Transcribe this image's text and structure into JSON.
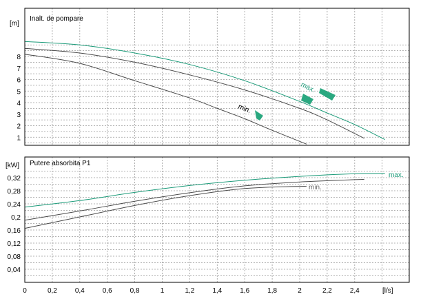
{
  "colors": {
    "max_curve": "#1a9a78",
    "min_curve": "#4a4a4a",
    "max_label": "#1a9a78",
    "min_label": "#6b6b6b",
    "grid": "#9a9a9a",
    "frame": "#000000",
    "marker": "#2aa880"
  },
  "chart_data": [
    {
      "type": "line",
      "title": "Inalt. de pompare",
      "ylabel": "[m]",
      "xlim": [
        0,
        2.8
      ],
      "ylim": [
        0,
        9.6
      ],
      "yticks": [
        "1",
        "2",
        "3",
        "4",
        "5",
        "6",
        "7",
        "8"
      ],
      "grid": true,
      "series": [
        {
          "name": "max.",
          "x": [
            0,
            0.4,
            0.8,
            1.2,
            1.6,
            2.0,
            2.2,
            2.4,
            2.62
          ],
          "y": [
            9.3,
            9.0,
            8.3,
            7.3,
            5.9,
            4.1,
            3.1,
            2.1,
            0.8
          ]
        },
        {
          "x": [
            0,
            0.4,
            0.8,
            1.2,
            1.6,
            2.0,
            2.2,
            2.47
          ],
          "y": [
            8.7,
            8.3,
            7.5,
            6.4,
            5.1,
            3.5,
            2.5,
            0.9
          ]
        },
        {
          "name": "min.",
          "x": [
            0,
            0.4,
            0.8,
            1.2,
            1.4,
            1.6,
            1.8,
            2.05
          ],
          "y": [
            8.2,
            7.4,
            5.9,
            4.4,
            3.5,
            2.6,
            1.6,
            0.4
          ]
        }
      ]
    },
    {
      "type": "line",
      "title": "Putere absorbita P1",
      "ylabel": "[kW]",
      "xlabel": "[l/s]",
      "xlim": [
        0,
        2.8
      ],
      "ylim": [
        0,
        0.36
      ],
      "xticks": [
        "0",
        "0,2",
        "0,4",
        "0,6",
        "0,8",
        "1",
        "1,2",
        "1,4",
        "1,6",
        "1,8",
        "2",
        "2,2",
        "2,4"
      ],
      "yticks": [
        "0,04",
        "0,08",
        "0,12",
        "0,16",
        "0,2",
        "0,24",
        "0,28",
        "0,32"
      ],
      "grid": true,
      "series": [
        {
          "name": "max.",
          "x": [
            0,
            0.4,
            0.8,
            1.2,
            1.6,
            2.0,
            2.4,
            2.62
          ],
          "y": [
            0.23,
            0.25,
            0.275,
            0.296,
            0.312,
            0.324,
            0.332,
            0.333
          ]
        },
        {
          "x": [
            0,
            0.4,
            0.8,
            1.2,
            1.6,
            2.0,
            2.47
          ],
          "y": [
            0.19,
            0.218,
            0.248,
            0.274,
            0.295,
            0.307,
            0.315
          ]
        },
        {
          "name": "min.",
          "x": [
            0,
            0.4,
            0.8,
            1.2,
            1.6,
            2.05
          ],
          "y": [
            0.165,
            0.2,
            0.235,
            0.265,
            0.287,
            0.294
          ]
        }
      ]
    }
  ]
}
